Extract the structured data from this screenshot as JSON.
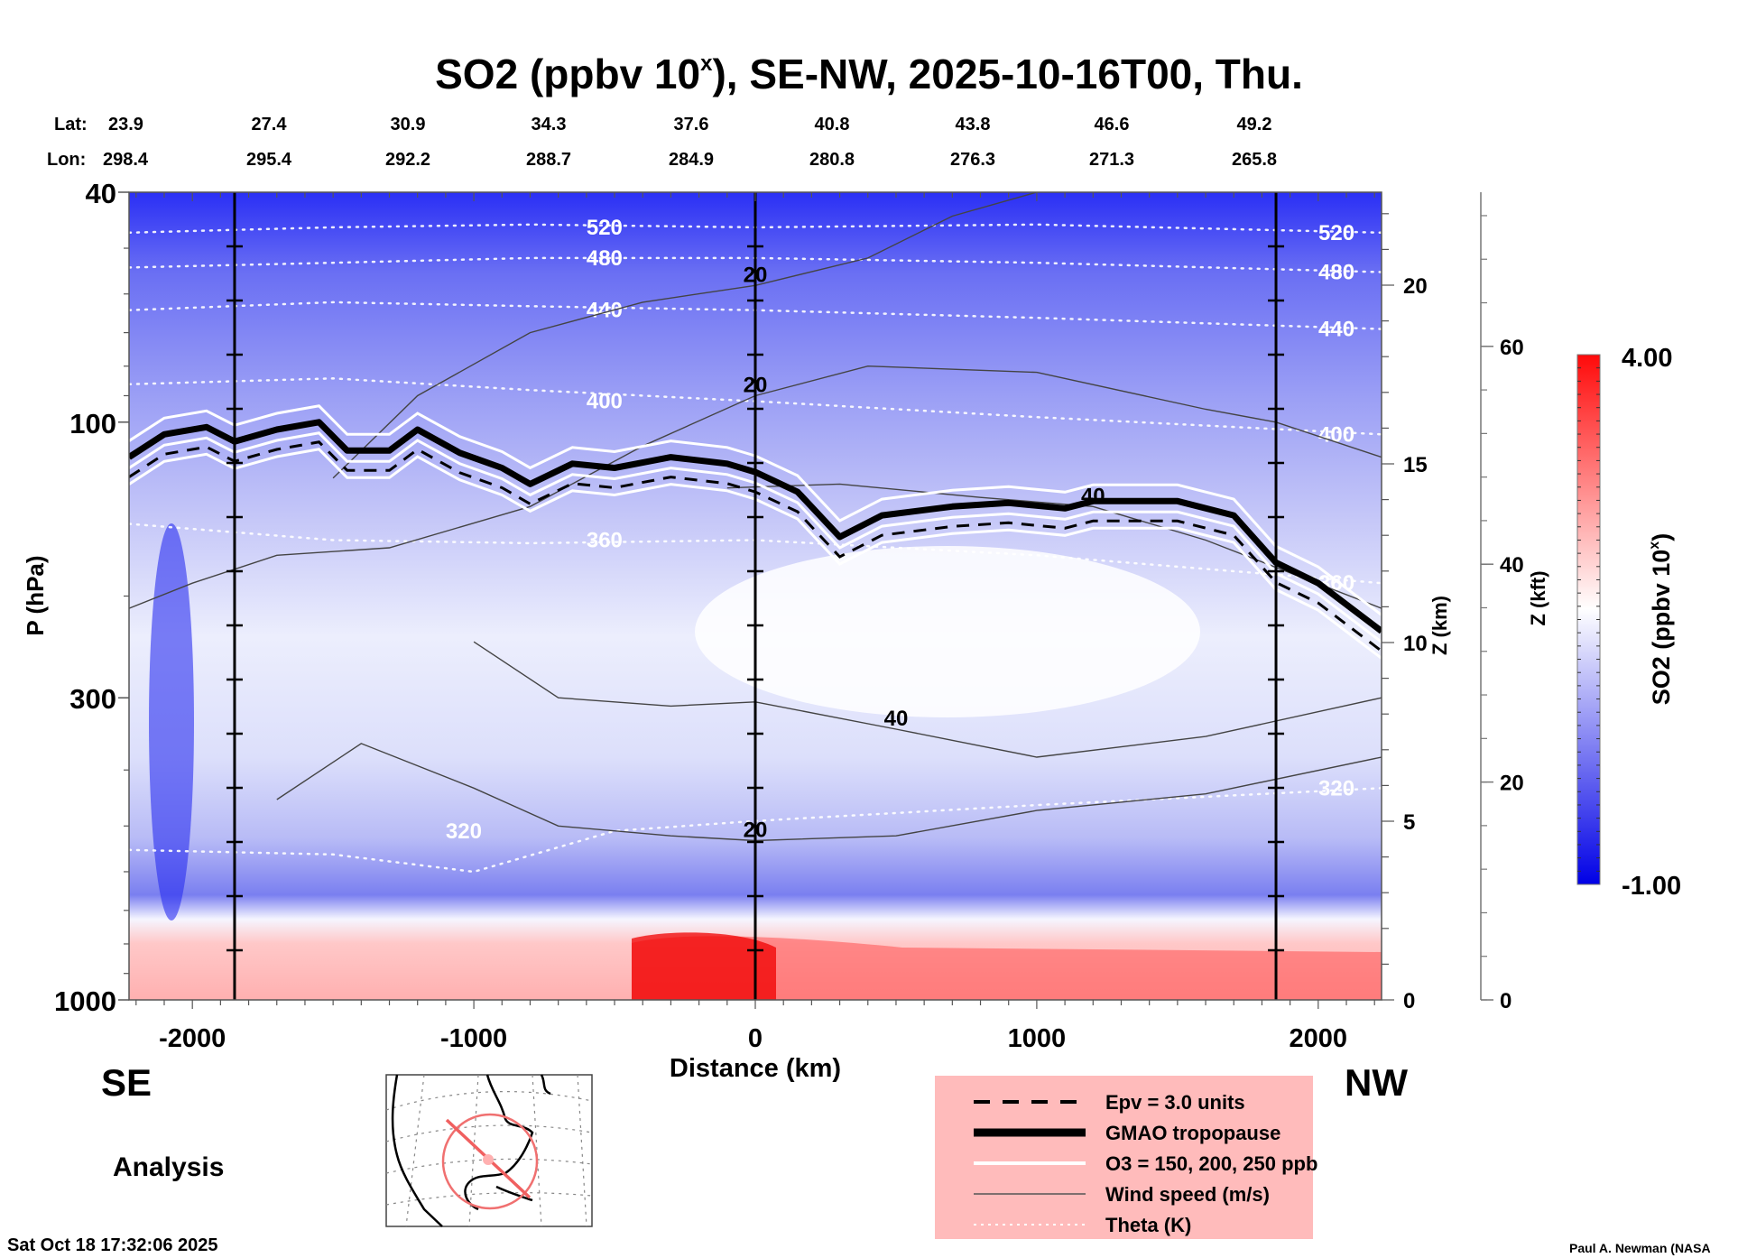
{
  "chart_data": {
    "type": "heatmap",
    "title": "SO2 (ppbv 10",
    "title_superscript": "x",
    "title_suffix": "), SE-NW, 2025-10-16T00, Thu.",
    "xlabel": "Distance (km)",
    "ylabel": "P (hPa)",
    "xlim": [
      -2225,
      2225
    ],
    "ylim": [
      1000,
      40
    ],
    "yscale": "log",
    "x_ticks": [
      -2000,
      -1000,
      0,
      1000,
      2000
    ],
    "x_tick_labels": [
      "-2000",
      "-1000",
      "0",
      "1000",
      "2000"
    ],
    "y_ticks": [
      40,
      100,
      300,
      1000
    ],
    "y_tick_labels": [
      "40",
      "100",
      "300",
      "1000"
    ],
    "z_km_axis": {
      "label": "Z (km)",
      "ticks": [
        0,
        5,
        10,
        15,
        20
      ],
      "tick_labels": [
        "0",
        "5",
        "10",
        "15",
        "20"
      ]
    },
    "z_kft_axis": {
      "label": "Z (kft)",
      "ticks": [
        0,
        20,
        40,
        60
      ],
      "tick_labels": [
        "0",
        "20",
        "40",
        "60"
      ]
    },
    "lat_lon": {
      "lat_label": "Lat:",
      "lon_label": "Lon:",
      "lat": [
        "23.9",
        "27.4",
        "30.9",
        "34.3",
        "37.6",
        "40.8",
        "43.8",
        "46.6",
        "49.2"
      ],
      "lon": [
        "298.4",
        "295.4",
        "292.2",
        "288.7",
        "284.9",
        "280.8",
        "276.3",
        "271.3",
        "265.8"
      ]
    },
    "direction_left": "SE",
    "direction_right": "NW",
    "run_type": "Analysis",
    "colorbar": {
      "label": "SO2 (ppbv 10",
      "label_superscript": "x",
      "label_suffix": ")",
      "min": -1.0,
      "max": 4.0,
      "min_label": "-1.00",
      "max_label": "4.00",
      "colors": [
        "#0000e6",
        "#ffffff",
        "#ff0000"
      ],
      "levels": 40
    },
    "station_lines_km": [
      -1850,
      0,
      1850
    ],
    "theta_contours": [
      {
        "label": "520",
        "value": 520,
        "points": [
          [
            -2225,
            47
          ],
          [
            -1500,
            46
          ],
          [
            -800,
            45.5
          ],
          [
            0,
            46
          ],
          [
            1000,
            45.5
          ],
          [
            2225,
            47
          ]
        ]
      },
      {
        "label": "480",
        "value": 480,
        "points": [
          [
            -2225,
            54
          ],
          [
            -1500,
            53
          ],
          [
            -800,
            52
          ],
          [
            0,
            52
          ],
          [
            1000,
            53
          ],
          [
            2225,
            55
          ]
        ]
      },
      {
        "label": "440",
        "value": 440,
        "points": [
          [
            -2225,
            64
          ],
          [
            -1500,
            62
          ],
          [
            -800,
            63
          ],
          [
            0,
            64
          ],
          [
            1000,
            66
          ],
          [
            2225,
            69
          ]
        ]
      },
      {
        "label": "400",
        "value": 400,
        "points": [
          [
            -2225,
            86
          ],
          [
            -1500,
            84
          ],
          [
            -800,
            88
          ],
          [
            0,
            92
          ],
          [
            1000,
            98
          ],
          [
            2225,
            105
          ]
        ]
      },
      {
        "label": "360",
        "value": 360,
        "points": [
          [
            -2225,
            150
          ],
          [
            -1500,
            160
          ],
          [
            -800,
            162
          ],
          [
            0,
            160
          ],
          [
            1000,
            170
          ],
          [
            2225,
            190
          ]
        ]
      },
      {
        "label": "320",
        "value": 320,
        "points": [
          [
            -2225,
            550
          ],
          [
            -1500,
            560
          ],
          [
            -1000,
            600
          ],
          [
            -500,
            510
          ],
          [
            0,
            490
          ],
          [
            1000,
            460
          ],
          [
            2225,
            430
          ]
        ]
      }
    ],
    "wind_speed_contours": [
      {
        "label": "20",
        "value": 20,
        "points": [
          [
            -1500,
            125
          ],
          [
            -1200,
            90
          ],
          [
            -800,
            70
          ],
          [
            -400,
            62
          ],
          [
            0,
            58
          ],
          [
            400,
            52
          ],
          [
            700,
            44
          ],
          [
            1000,
            40
          ]
        ]
      },
      {
        "label": "20",
        "value": 20,
        "points": [
          [
            -2225,
            210
          ],
          [
            -2000,
            190
          ],
          [
            -1700,
            170
          ],
          [
            -1300,
            165
          ],
          [
            -800,
            140
          ],
          [
            -400,
            110
          ],
          [
            0,
            90
          ],
          [
            400,
            80
          ],
          [
            1000,
            82
          ],
          [
            1600,
            95
          ],
          [
            1850,
            100
          ],
          [
            2225,
            115
          ]
        ]
      },
      {
        "label": "40",
        "value": 40,
        "points": [
          [
            -1000,
            240
          ],
          [
            -700,
            300
          ],
          [
            -300,
            310
          ],
          [
            0,
            305
          ],
          [
            500,
            340
          ],
          [
            1000,
            380
          ],
          [
            1600,
            350
          ],
          [
            2225,
            300
          ]
        ]
      },
      {
        "label": "40",
        "value": 40,
        "points": [
          [
            -100,
            130
          ],
          [
            300,
            128
          ],
          [
            800,
            135
          ],
          [
            1200,
            140
          ],
          [
            1600,
            160
          ],
          [
            2225,
            210
          ]
        ]
      },
      {
        "label": "20",
        "value": 20,
        "points": [
          [
            -1700,
            450
          ],
          [
            -1400,
            360
          ],
          [
            -1000,
            430
          ],
          [
            -700,
            500
          ],
          [
            -300,
            520
          ],
          [
            0,
            530
          ],
          [
            500,
            520
          ],
          [
            1000,
            470
          ],
          [
            1600,
            440
          ],
          [
            2225,
            380
          ]
        ]
      }
    ],
    "tropopause": [
      [
        -2225,
        115
      ],
      [
        -2100,
        105
      ],
      [
        -1950,
        102
      ],
      [
        -1850,
        108
      ],
      [
        -1700,
        103
      ],
      [
        -1550,
        100
      ],
      [
        -1450,
        112
      ],
      [
        -1300,
        112
      ],
      [
        -1200,
        103
      ],
      [
        -1050,
        113
      ],
      [
        -900,
        120
      ],
      [
        -800,
        128
      ],
      [
        -650,
        118
      ],
      [
        -500,
        120
      ],
      [
        -300,
        115
      ],
      [
        -100,
        118
      ],
      [
        0,
        122
      ],
      [
        150,
        132
      ],
      [
        300,
        158
      ],
      [
        450,
        145
      ],
      [
        700,
        140
      ],
      [
        900,
        138
      ],
      [
        1100,
        141
      ],
      [
        1200,
        137
      ],
      [
        1500,
        137
      ],
      [
        1700,
        145
      ],
      [
        1850,
        175
      ],
      [
        2000,
        190
      ],
      [
        2225,
        230
      ]
    ],
    "legend": [
      {
        "label": "Epv = 3.0 units",
        "style": "dashed"
      },
      {
        "label": "GMAO tropopause",
        "style": "thick"
      },
      {
        "label": "O3 = 150, 200, 250 ppb",
        "style": "white"
      },
      {
        "label": "Wind speed (m/s)",
        "style": "thin"
      },
      {
        "label": "Theta (K)",
        "style": "dotted"
      }
    ],
    "legend_bg": "#ffbbbb"
  },
  "footer": {
    "timestamp": "Sat Oct 18 17:32:06 2025",
    "credit": "Paul A. Newman (NASA"
  }
}
